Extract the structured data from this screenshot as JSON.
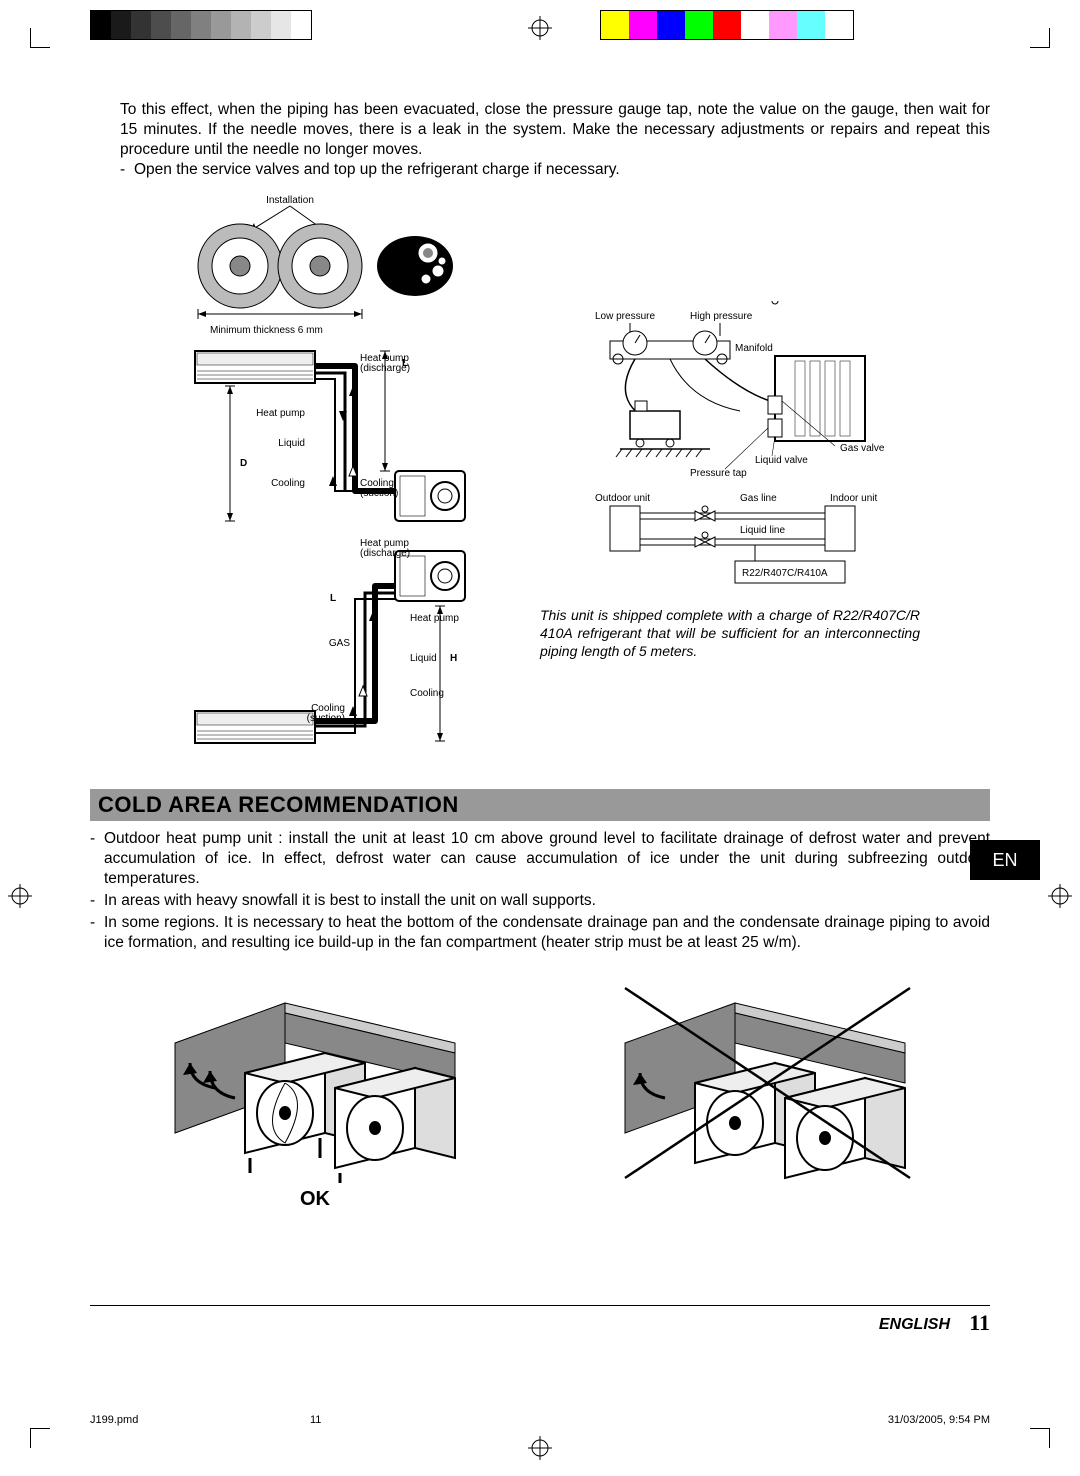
{
  "colorbar_gray": [
    "#000000",
    "#1a1a1a",
    "#333333",
    "#4d4d4d",
    "#666666",
    "#808080",
    "#999999",
    "#b3b3b3",
    "#cccccc",
    "#e6e6e6",
    "#ffffff"
  ],
  "colorbar_color": [
    "#ffff00",
    "#ff00ff",
    "#0000ff",
    "#00ff00",
    "#ff0000",
    "#ffffff",
    "#ff99ff",
    "#66ffff",
    "#ffffff"
  ],
  "intro": {
    "p1": "To this effect, when the piping has been evacuated, close the pressure gauge tap, note the value on the gauge, then wait for 15 minutes. If the needle moves, there is a leak in the system. Make the necessary adjustments or repairs and repeat this procedure until the needle no longer moves.",
    "p2": "Open the service valves and top up the refrigerant charge if necessary."
  },
  "diagram_left": {
    "installation": "Installation",
    "min_thickness": "Minimum thickness  6 mm",
    "heat_pump": "Heat pump",
    "discharge": "(discharge)",
    "liquid": "Liquid",
    "cooling": "Cooling",
    "suction": "(suction)",
    "gas": "GAS",
    "L": "L",
    "D": "D",
    "H": "H"
  },
  "diagram_right": {
    "low_pressure": "Low pressure",
    "high_pressure": "High pressure",
    "manifold": "Manifold",
    "gas_valve": "Gas valve",
    "liquid_valve": "Liquid valve",
    "pressure_tap": "Pressure tap",
    "outdoor_unit": "Outdoor unit",
    "indoor_unit": "Indoor unit",
    "gas_line": "Gas line",
    "liquid_line": "Liquid line",
    "refrigerant": "R22/R407C/R410A"
  },
  "shipping_note": "This unit is shipped complete with a charge of R22/R407C/R 410A refrigerant that will be sufficient for an interconnecting piping  length of 5 meters.",
  "section_title": "COLD AREA RECOMMENDATION",
  "cold_area": {
    "b1": "Outdoor heat pump unit : install the unit at least 10 cm above ground level to facilitate drainage of defrost water and prevent accumulation of ice. In effect, defrost water can cause accumulation of ice under the unit during  subfreezing outdoor temperatures.",
    "b2": "In areas with heavy snowfall it is best to install the unit on wall supports.",
    "b3": "In some regions. It is necessary to heat the bottom of the condensate drainage pan and the condensate drainage piping to avoid ice formation, and resulting ice build-up in the fan compartment (heater strip must be at least 25 w/m)."
  },
  "ok_label": "OK",
  "en_tab": "EN",
  "footer": {
    "lang": "ENGLISH",
    "page": "11"
  },
  "meta": {
    "file": "J199.pmd",
    "page": "11",
    "datetime": "31/03/2005, 9:54 PM"
  },
  "colors": {
    "section_bg": "#999999",
    "text": "#000000",
    "page_bg": "#ffffff"
  },
  "fonts": {
    "body_size_pt": 11,
    "diagram_label_pt": 7,
    "section_title_pt": 16,
    "footer_page_pt": 16
  }
}
